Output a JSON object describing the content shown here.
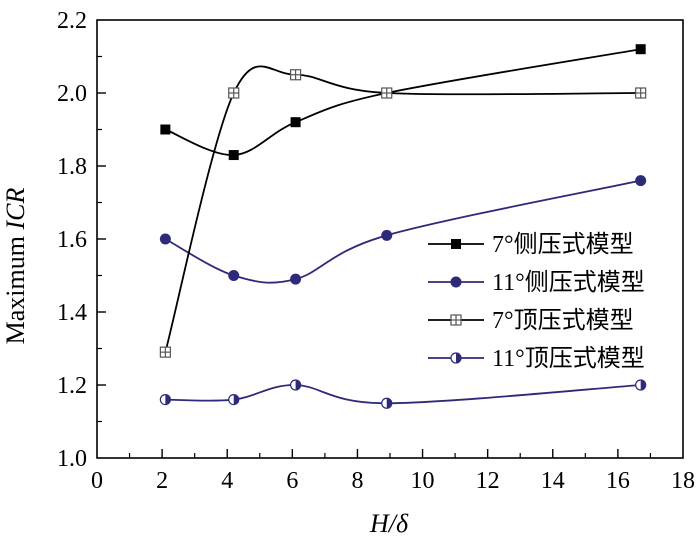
{
  "chart_data": {
    "type": "line",
    "xlabel": {
      "text": "H/δ",
      "italic_parts": [
        "H",
        "δ"
      ]
    },
    "ylabel": {
      "prefix": "Maximum ",
      "italic": "ICR"
    },
    "xlim": [
      0,
      18
    ],
    "ylim": [
      1.0,
      2.2
    ],
    "xticks": [
      "0",
      "2",
      "4",
      "6",
      "8",
      "10",
      "12",
      "14",
      "16",
      "18"
    ],
    "yticks": [
      "1.0",
      "1.2",
      "1.4",
      "1.6",
      "1.8",
      "2.0",
      "2.2"
    ],
    "grid": false,
    "legend_position": "right",
    "series": [
      {
        "name": "7°侧压式模型",
        "marker": "filled-square",
        "color": "#000000",
        "x": [
          2.1,
          4.2,
          6.1,
          8.9,
          16.7
        ],
        "y": [
          1.9,
          1.83,
          1.92,
          2.0,
          2.12
        ]
      },
      {
        "name": "11°侧压式模型",
        "marker": "filled-circle",
        "color": "#2e2a7a",
        "x": [
          2.1,
          4.2,
          6.1,
          8.9,
          16.7
        ],
        "y": [
          1.6,
          1.5,
          1.49,
          1.61,
          1.76
        ]
      },
      {
        "name": "7°顶压式模型",
        "marker": "crossed-square",
        "color": "#000000",
        "x": [
          2.1,
          4.2,
          6.1,
          8.9,
          16.7
        ],
        "y": [
          1.29,
          2.0,
          2.05,
          2.0,
          2.0
        ]
      },
      {
        "name": "11°顶压式模型",
        "marker": "half-circle",
        "color": "#2e2a7a",
        "x": [
          2.1,
          4.2,
          6.1,
          8.9,
          16.7
        ],
        "y": [
          1.16,
          1.16,
          1.2,
          1.15,
          1.2
        ]
      }
    ]
  }
}
